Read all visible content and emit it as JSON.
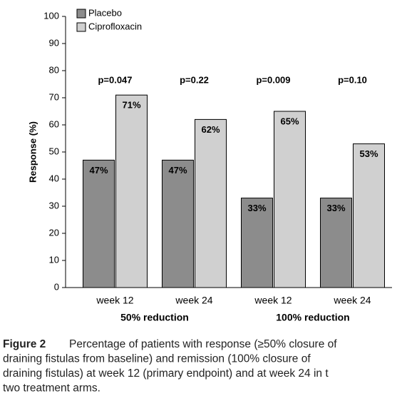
{
  "chart_data": {
    "type": "bar",
    "y_label": "Response (%)",
    "categories": [
      "week 12",
      "week 24",
      "week 12",
      "week 24"
    ],
    "group_labels": [
      "50% reduction",
      "100% reduction"
    ],
    "annotations": [
      "p=0.047",
      "p=0.22",
      "p=0.009",
      "p=0.10"
    ],
    "series": [
      {
        "name": "Placebo",
        "color": "#8c8c8c",
        "values": [
          47,
          47,
          33,
          33
        ],
        "value_labels": [
          "47%",
          "47%",
          "33%",
          "33%"
        ]
      },
      {
        "name": "Ciprofloxacin",
        "color": "#d0d0d0",
        "values": [
          71,
          62,
          65,
          53
        ],
        "value_labels": [
          "71%",
          "62%",
          "65%",
          "53%"
        ]
      }
    ],
    "ylim": [
      0,
      100
    ],
    "yticks": [
      0,
      10,
      20,
      30,
      40,
      50,
      60,
      70,
      80,
      90,
      100
    ],
    "legend": "top-left"
  },
  "caption": {
    "label": "Figure 2",
    "lines": [
      "Percentage of patients with response (≥50% closure of",
      "draining fistulas from baseline) and remission (100% closure of",
      "draining fistulas) at week 12 (primary endpoint) and at week 24 in t",
      "two treatment arms."
    ]
  }
}
